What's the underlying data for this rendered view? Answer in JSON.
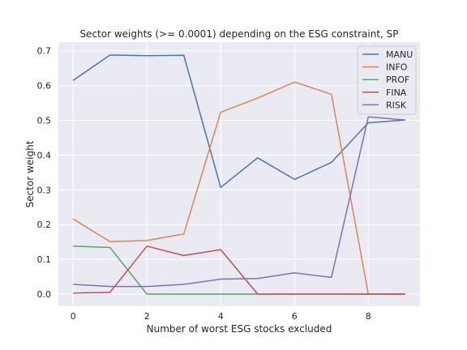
{
  "chart_data": {
    "type": "line",
    "title": "Sector weights (>= 0.0001) depending on the ESG constraint, SP",
    "xlabel": "Number of worst ESG stocks excluded",
    "ylabel": "Sector weight",
    "x": [
      0,
      1,
      2,
      3,
      4,
      5,
      6,
      7,
      8,
      9
    ],
    "xlim": [
      -0.4,
      9.4
    ],
    "ylim": [
      -0.035,
      0.725
    ],
    "xticks": [
      0,
      2,
      4,
      6,
      8
    ],
    "yticks": [
      0.0,
      0.1,
      0.2,
      0.3,
      0.4,
      0.5,
      0.6,
      0.7
    ],
    "grid": true,
    "legend_position": "top-right",
    "series": [
      {
        "name": "MANU",
        "color": "#4c72b0",
        "values": [
          0.615,
          0.688,
          0.686,
          0.687,
          0.307,
          0.392,
          0.33,
          0.379,
          0.493,
          0.501
        ]
      },
      {
        "name": "INFO",
        "color": "#dd8452",
        "values": [
          0.216,
          0.151,
          0.154,
          0.173,
          0.523,
          0.564,
          0.61,
          0.575,
          0.0,
          0.0
        ]
      },
      {
        "name": "PROF",
        "color": "#55a868",
        "values": [
          0.138,
          0.134,
          0.0,
          0.0,
          0.0,
          0.0,
          0.0,
          0.0,
          0.0,
          0.0
        ]
      },
      {
        "name": "FINA",
        "color": "#c44e52",
        "values": [
          0.003,
          0.005,
          0.138,
          0.111,
          0.128,
          0.0,
          0.0,
          0.0,
          0.0,
          0.0
        ]
      },
      {
        "name": "RISK",
        "color": "#8172b3",
        "values": [
          0.028,
          0.022,
          0.022,
          0.028,
          0.043,
          0.045,
          0.061,
          0.048,
          0.51,
          0.501
        ]
      }
    ]
  }
}
